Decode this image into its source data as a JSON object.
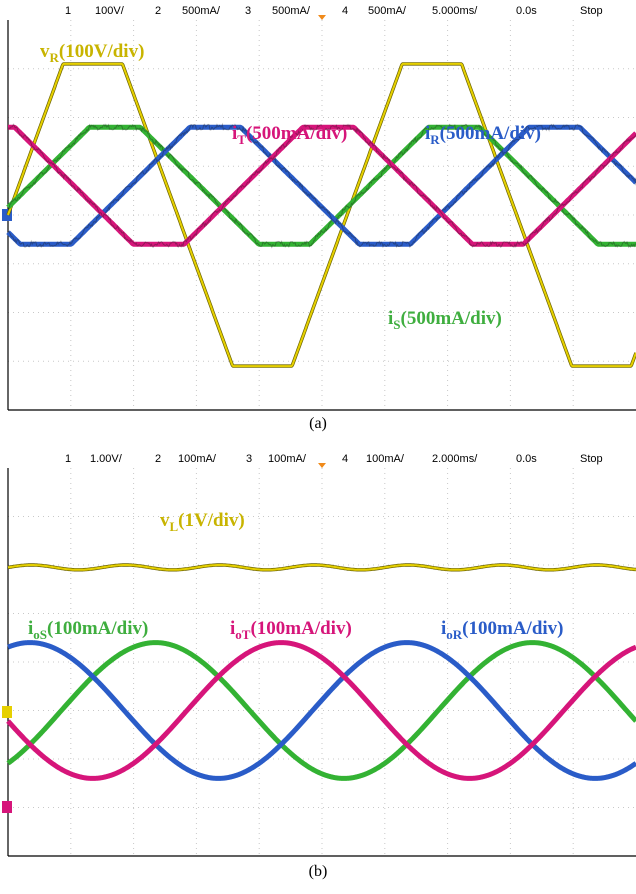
{
  "panels": [
    {
      "id": "a",
      "caption": "(a)",
      "header": [
        {
          "text": "1",
          "color": "#e6d000"
        },
        {
          "text": "100V/",
          "color": "#000000"
        },
        {
          "text": "2",
          "color": "#2fb82f"
        },
        {
          "text": "500mA/",
          "color": "#000000"
        },
        {
          "text": "3",
          "color": "#2a5cc8"
        },
        {
          "text": "500mA/",
          "color": "#000000"
        },
        {
          "text": "4",
          "color": "#d6157a"
        },
        {
          "text": "500mA/",
          "color": "#000000"
        },
        {
          "text": "5.000ms/",
          "color": "#000000"
        },
        {
          "text": "0.0s",
          "color": "#000000"
        },
        {
          "text": "Stop",
          "color": "#000000"
        }
      ],
      "labels": [
        {
          "main": "v",
          "sub": "R",
          "rest": "(100V/div)",
          "color": "#c8b400"
        },
        {
          "main": "i",
          "sub": "T",
          "rest": "(500mA/div)",
          "color": "#d6157a"
        },
        {
          "main": "i",
          "sub": "R",
          "rest": "(500mA/div)",
          "color": "#2a5cc8"
        },
        {
          "main": "i",
          "sub": "S",
          "rest": "(500mA/div)",
          "color": "#3fae3f"
        }
      ]
    },
    {
      "id": "b",
      "caption": "(b)",
      "header": [
        {
          "text": "1",
          "color": "#e6d000"
        },
        {
          "text": "1.00V/",
          "color": "#000000"
        },
        {
          "text": "2",
          "color": "#2fb82f"
        },
        {
          "text": "100mA/",
          "color": "#000000"
        },
        {
          "text": "3",
          "color": "#2a5cc8"
        },
        {
          "text": "100mA/",
          "color": "#000000"
        },
        {
          "text": "4",
          "color": "#d6157a"
        },
        {
          "text": "100mA/",
          "color": "#000000"
        },
        {
          "text": "2.000ms/",
          "color": "#000000"
        },
        {
          "text": "0.0s",
          "color": "#000000"
        },
        {
          "text": "Stop",
          "color": "#000000"
        }
      ],
      "labels": [
        {
          "main": "v",
          "sub": "L",
          "rest": "(1V/div)",
          "color": "#c8b400"
        },
        {
          "main": "i",
          "sub": "oS",
          "rest": "(100mA/div)",
          "color": "#3fae3f"
        },
        {
          "main": "i",
          "sub": "oT",
          "rest": "(100mA/div)",
          "color": "#d6157a"
        },
        {
          "main": "i",
          "sub": "oR",
          "rest": "(100mA/div)",
          "color": "#2a5cc8"
        }
      ]
    }
  ],
  "chart_data": [
    {
      "type": "line",
      "x_unit": "div",
      "xlim": [
        0,
        10
      ],
      "ylim": [
        -4,
        4
      ],
      "grid": true,
      "divisions": {
        "x": 10,
        "y": 8
      },
      "series": [
        {
          "name": "vR",
          "color": "#e6d000",
          "shape": "trapezoid",
          "amplitude_div": 3.1,
          "offset_div": 0,
          "period_div": 5.4,
          "phase_div": 0.0,
          "flat_fraction": 0.35
        },
        {
          "name": "iS",
          "color": "#33b233",
          "shape": "trapezoid",
          "amplitude_div": 1.2,
          "offset_div": 0.6,
          "period_div": 5.4,
          "phase_div": 0.35,
          "flat_fraction": 0.3
        },
        {
          "name": "iR",
          "color": "#2a5cc8",
          "shape": "trapezoid",
          "amplitude_div": 1.2,
          "offset_div": 0.6,
          "period_div": 5.4,
          "phase_div": 1.95,
          "flat_fraction": 0.3
        },
        {
          "name": "iT",
          "color": "#d6157a",
          "shape": "trapezoid",
          "amplitude_div": 1.2,
          "offset_div": 0.6,
          "period_div": 5.4,
          "phase_div": 3.75,
          "flat_fraction": 0.3
        }
      ]
    },
    {
      "type": "line",
      "x_unit": "div",
      "xlim": [
        0,
        10
      ],
      "ylim": [
        -4,
        4
      ],
      "grid": true,
      "divisions": {
        "x": 10,
        "y": 8
      },
      "series": [
        {
          "name": "vL",
          "color": "#e6d000",
          "shape": "ripple",
          "amplitude_div": 0.05,
          "offset_div": 1.95,
          "period_div": 1.5,
          "phase_div": 0.0
        },
        {
          "name": "iS",
          "color": "#33b233",
          "shape": "sine",
          "amplitude_div": 1.4,
          "offset_div": -1.0,
          "period_div": 6.0,
          "phase_div": 0.85
        },
        {
          "name": "iR",
          "color": "#2a5cc8",
          "shape": "sine",
          "amplitude_div": 1.4,
          "offset_div": -1.0,
          "period_div": 6.0,
          "phase_div": 4.85
        },
        {
          "name": "iT",
          "color": "#d6157a",
          "shape": "sine",
          "amplitude_div": 1.4,
          "offset_div": -1.0,
          "period_div": 6.0,
          "phase_div": 2.85
        }
      ]
    }
  ]
}
